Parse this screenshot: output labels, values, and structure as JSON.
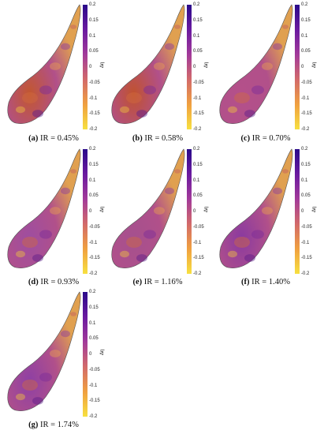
{
  "panels": [
    {
      "letter": "(a)",
      "text": "IR = 0.45%"
    },
    {
      "letter": "(b)",
      "text": "IR = 0.58%"
    },
    {
      "letter": "(c)",
      "text": "IR = 0.70%"
    },
    {
      "letter": "(d)",
      "text": "IR = 0.93%"
    },
    {
      "letter": "(e)",
      "text": "IR = 1.16%"
    },
    {
      "letter": "(f)",
      "text": "IR = 1.40%"
    },
    {
      "letter": "(g)",
      "text": "IR = 1.74%"
    }
  ],
  "colorbar": {
    "label": "Δη",
    "ticks": [
      "0.2",
      "0.15",
      "0.1",
      "0.05",
      "0",
      "-0.05",
      "-0.1",
      "-0.15",
      "-0.2"
    ],
    "colors": [
      "#2a0a8a",
      "#6a1aa0",
      "#a23a9a",
      "#d26a6a",
      "#f0a040",
      "#f7e040"
    ]
  },
  "blade_fill": {
    "dominant": [
      "#c2572f",
      "#c0522f",
      "#b4508a",
      "#9e4ea0",
      "#a5508e",
      "#8a3aa0",
      "#8e40a4"
    ]
  }
}
